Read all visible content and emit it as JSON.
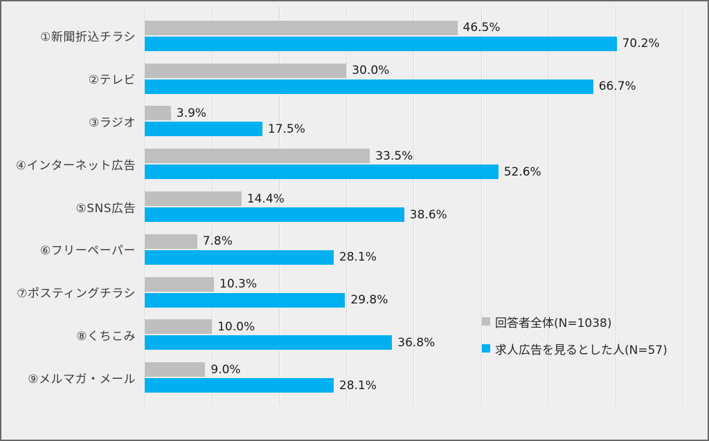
{
  "chart_data": {
    "type": "bar",
    "orientation": "horizontal",
    "title": "",
    "xlabel": "",
    "ylabel": "",
    "xlim": [
      0,
      80
    ],
    "gridline_interval_percent": 10,
    "grid": true,
    "legend_position": "right-middle",
    "value_suffix": "%",
    "categories": [
      "①新聞折込チラシ",
      "②テレビ",
      "③ラジオ",
      "④インターネット広告",
      "⑤SNS広告",
      "⑥フリーペーパー",
      "⑦ポスティングチラシ",
      "⑧くちこみ",
      "⑨メルマガ・メール"
    ],
    "series": [
      {
        "name": "回答者全体(N=1038)",
        "color": "#bfbfbf",
        "values": [
          46.5,
          30.0,
          3.9,
          33.5,
          14.4,
          7.8,
          10.3,
          10.0,
          9.0
        ]
      },
      {
        "name": "求人広告を見るとした人(N=57)",
        "color": "#00b0f0",
        "values": [
          70.2,
          66.7,
          17.5,
          52.6,
          38.6,
          28.1,
          29.8,
          36.8,
          28.1
        ]
      }
    ]
  },
  "style": {
    "background_color": "#efefef",
    "border_color": "#686868",
    "gridline_color": "#d9d9d9",
    "label_color": "#3a3a3a",
    "value_color": "#1a1a1a"
  }
}
